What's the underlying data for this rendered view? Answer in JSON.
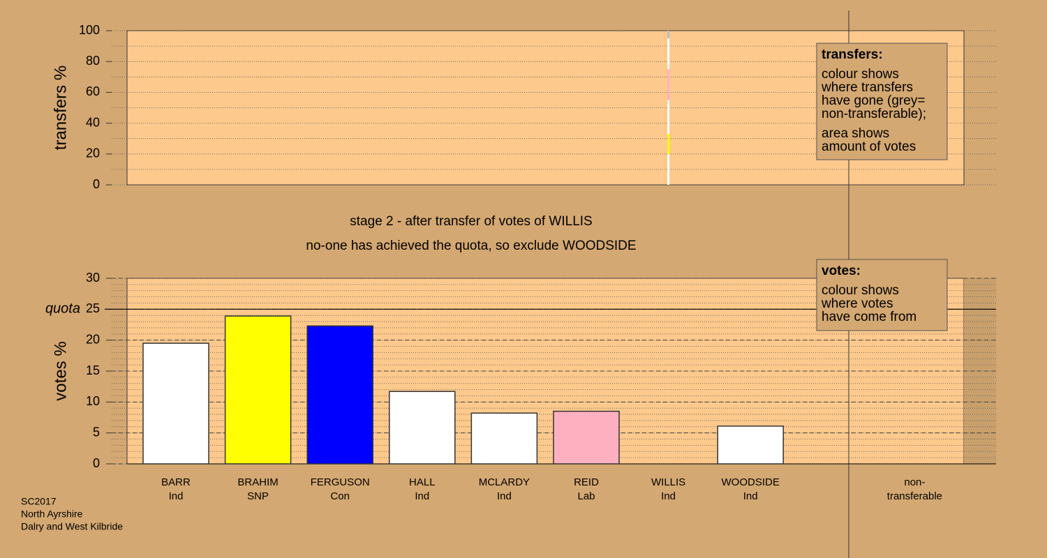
{
  "chart_data": [
    {
      "type": "stacked-column",
      "ylabel": "transfers %",
      "ylim": [
        0,
        100
      ],
      "yticks": [
        0,
        20,
        40,
        60,
        80,
        100
      ],
      "minor_grid_step": 10,
      "segments": [
        {
          "color": "#ffffff",
          "value": 20
        },
        {
          "color": "#ffff00",
          "value": 13
        },
        {
          "color": "#ffffff",
          "value": 11
        },
        {
          "color": "#ffffff",
          "value": 11
        },
        {
          "color": "#ffb0c0",
          "value": 20
        },
        {
          "color": "#ffffff",
          "value": 20
        },
        {
          "color": "#bebebe",
          "value": 5
        }
      ],
      "legend": {
        "title": "transfers:",
        "lines": [
          "colour shows",
          "where transfers",
          "have gone (grey=",
          "non-transferable);",
          "area shows",
          "amount of votes"
        ]
      }
    },
    {
      "type": "bar",
      "title_lines": [
        "stage 2 - after transfer of votes of WILLIS",
        "no-one has achieved the quota, so exclude WOODSIDE"
      ],
      "ylabel": "votes %",
      "ylim": [
        0,
        30
      ],
      "yticks": [
        0,
        5,
        10,
        15,
        20,
        25,
        30
      ],
      "minor_grid_step": 1,
      "quota": {
        "value": 25,
        "label": "quota"
      },
      "categories": [
        [
          "BARR",
          "Ind"
        ],
        [
          "BRAHIM",
          "SNP"
        ],
        [
          "FERGUSON",
          "Con"
        ],
        [
          "HALL",
          "Ind"
        ],
        [
          "MCLARDY",
          "Ind"
        ],
        [
          "REID",
          "Lab"
        ],
        [
          "WILLIS",
          "Ind"
        ],
        [
          "WOODSIDE",
          "Ind"
        ],
        [
          "non-",
          "transferable"
        ]
      ],
      "values": [
        19.5,
        23.9,
        22.3,
        11.7,
        8.2,
        8.5,
        0,
        6.1,
        0
      ],
      "colors": [
        "#ffffff",
        "#ffff00",
        "#0000ff",
        "#ffffff",
        "#ffffff",
        "#ffb0c0",
        "#ffffff",
        "#ffffff",
        "#bebebe"
      ],
      "legend": {
        "title": "votes:",
        "lines": [
          "colour shows",
          "where votes",
          "have come from"
        ]
      }
    }
  ],
  "footer": [
    "SC2017",
    "North Ayrshire",
    "Dalry and West Kilbride"
  ]
}
